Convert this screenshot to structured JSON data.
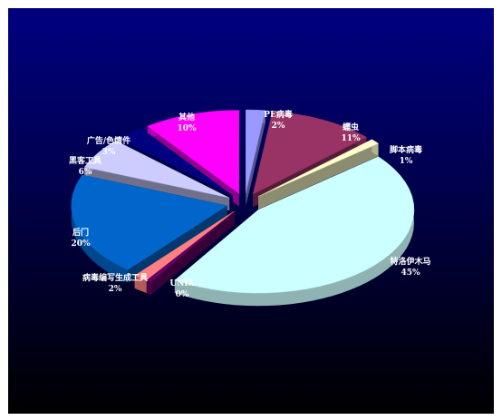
{
  "chart_data": {
    "type": "pie",
    "style": "3d-exploded",
    "slices": [
      {
        "label": "PE病毒",
        "value": 2,
        "display": "2%",
        "color": "#9999ff"
      },
      {
        "label": "蠕虫",
        "value": 11,
        "display": "11%",
        "color": "#993366"
      },
      {
        "label": "脚本病毒",
        "value": 1,
        "display": "1%",
        "color": "#ffffcc"
      },
      {
        "label": "特洛伊木马",
        "value": 45,
        "display": "45%",
        "color": "#ccffff"
      },
      {
        "label": "UNIX",
        "value": 0,
        "display": "0%",
        "color": "#660066"
      },
      {
        "label": "病毒编写生成工具",
        "value": 2,
        "display": "2%",
        "color": "#ff8080"
      },
      {
        "label": "后门",
        "value": 20,
        "display": "20%",
        "color": "#0066cc"
      },
      {
        "label": "黑客工具",
        "value": 6,
        "display": "6%",
        "color": "#ccccff"
      },
      {
        "label": "广告/色情件",
        "value": 3,
        "display": "3%",
        "color": "#000080"
      },
      {
        "label": "其他",
        "value": 10,
        "display": "10%",
        "color": "#ff00ff"
      }
    ]
  }
}
